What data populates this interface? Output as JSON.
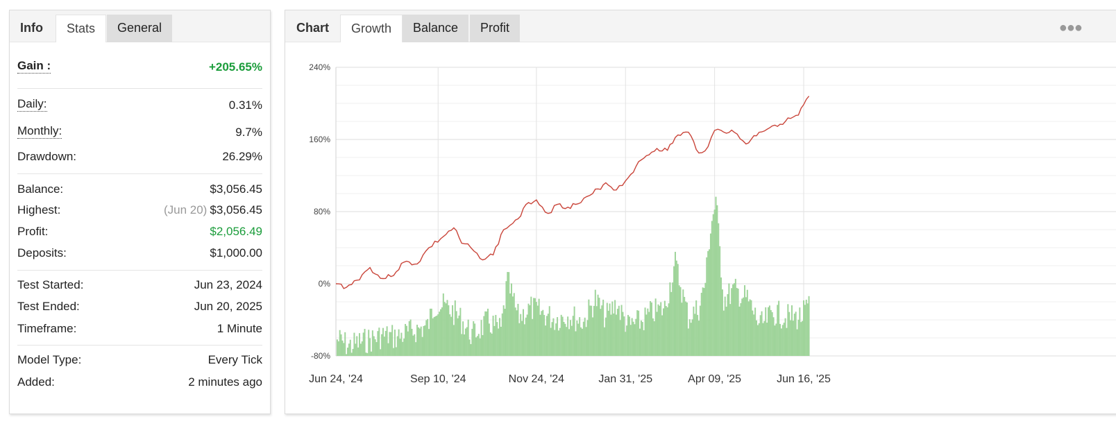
{
  "left_tabs": {
    "title": "Info",
    "active": "Stats",
    "inactive": "General"
  },
  "stats": {
    "gain": {
      "label": "Gain :",
      "value": "+205.65%"
    },
    "daily": {
      "label": "Daily:",
      "value": "0.31%"
    },
    "monthly": {
      "label": "Monthly:",
      "value": "9.7%"
    },
    "drawdown": {
      "label": "Drawdown:",
      "value": "26.29%"
    },
    "balance": {
      "label": "Balance:",
      "value": "$3,056.45"
    },
    "highest": {
      "label": "Highest:",
      "date": "(Jun 20)",
      "value": "$3,056.45"
    },
    "profit": {
      "label": "Profit:",
      "value": "$2,056.49"
    },
    "deposits": {
      "label": "Deposits:",
      "value": "$1,000.00"
    },
    "test_started": {
      "label": "Test Started:",
      "value": "Jun 23, 2024"
    },
    "test_ended": {
      "label": "Test Ended:",
      "value": "Jun 20, 2025"
    },
    "timeframe": {
      "label": "Timeframe:",
      "value": "1 Minute"
    },
    "model_type": {
      "label": "Model Type:",
      "value": "Every Tick"
    },
    "added": {
      "label": "Added:",
      "value": "2 minutes ago"
    }
  },
  "right_tabs": {
    "title": "Chart",
    "active": "Growth",
    "inactive": [
      "Balance",
      "Profit"
    ],
    "more_icon": "more-dots-icon"
  },
  "colors": {
    "positive": "#1a9c3a",
    "growth_line": "#c9453a",
    "bars": "#9fd49a"
  },
  "chart_data": {
    "type": "line",
    "ylim": [
      -80,
      240
    ],
    "y_ticks": [
      "240%",
      "160%",
      "80%",
      "0%",
      "-80%"
    ],
    "y_tick_values": [
      240,
      160,
      80,
      0,
      -80
    ],
    "x_tick_labels": [
      "Jun 24, '24",
      "Sep 10, '24",
      "Nov 24, '24",
      "Jan 31, '25",
      "Apr 09, '25",
      "Jun 16, '25"
    ],
    "x_tick_dates": [
      "2024-06-24",
      "2024-09-10",
      "2024-11-24",
      "2025-01-31",
      "2025-04-09",
      "2025-06-16"
    ],
    "x_range": [
      "2024-06-24",
      "2025-06-20"
    ],
    "grid": true,
    "series": [
      {
        "type": "line",
        "x": [
          "2024-06-24",
          "2024-07-02",
          "2024-07-10",
          "2024-07-20",
          "2024-07-28",
          "2024-08-05",
          "2024-08-15",
          "2024-08-25",
          "2024-09-03",
          "2024-09-12",
          "2024-09-22",
          "2024-09-28",
          "2024-10-05",
          "2024-10-12",
          "2024-10-22",
          "2024-10-30",
          "2024-11-04",
          "2024-11-10",
          "2024-11-18",
          "2024-11-24",
          "2024-12-03",
          "2024-12-10",
          "2024-12-18",
          "2024-12-28",
          "2025-01-06",
          "2025-01-16",
          "2025-01-24",
          "2025-01-31",
          "2025-02-08",
          "2025-02-16",
          "2025-02-24",
          "2025-03-04",
          "2025-03-12",
          "2025-03-20",
          "2025-03-28",
          "2025-04-04",
          "2025-04-09",
          "2025-04-14",
          "2025-04-24",
          "2025-05-03",
          "2025-05-13",
          "2025-05-23",
          "2025-06-02",
          "2025-06-12",
          "2025-06-20"
        ],
        "y": [
          0,
          -4,
          4,
          18,
          6,
          8,
          24,
          22,
          40,
          50,
          62,
          45,
          40,
          28,
          32,
          60,
          65,
          72,
          90,
          93,
          78,
          88,
          85,
          90,
          100,
          112,
          104,
          114,
          130,
          142,
          150,
          148,
          165,
          168,
          145,
          152,
          170,
          170,
          168,
          155,
          168,
          175,
          180,
          187,
          208
        ]
      },
      {
        "type": "bar",
        "note_units": "percent",
        "x": [
          "2024-06-26",
          "2024-07-04",
          "2024-07-12",
          "2024-07-20",
          "2024-07-30",
          "2024-08-10",
          "2024-08-22",
          "2024-09-02",
          "2024-09-08",
          "2024-09-18",
          "2024-09-26",
          "2024-10-06",
          "2024-10-18",
          "2024-10-28",
          "2024-11-02",
          "2024-11-10",
          "2024-11-20",
          "2024-11-28",
          "2024-12-08",
          "2024-12-18",
          "2024-12-30",
          "2025-01-08",
          "2025-01-16",
          "2025-01-24",
          "2025-02-02",
          "2025-02-12",
          "2025-02-20",
          "2025-03-02",
          "2025-03-10",
          "2025-03-20",
          "2025-03-28",
          "2025-04-02",
          "2025-04-06",
          "2025-04-10",
          "2025-04-16",
          "2025-04-24",
          "2025-05-04",
          "2025-05-14",
          "2025-05-24",
          "2025-06-04",
          "2025-06-14",
          "2025-06-19"
        ],
        "y": [
          -55,
          -62,
          -58,
          -55,
          -50,
          -52,
          -45,
          -40,
          -15,
          -20,
          -30,
          -50,
          -35,
          -45,
          10,
          -30,
          -20,
          -25,
          -32,
          -28,
          -35,
          -10,
          -30,
          -15,
          -40,
          -35,
          -25,
          -20,
          30,
          -30,
          -20,
          10,
          70,
          100,
          -10,
          0,
          -10,
          -40,
          -25,
          -30,
          -30,
          -20
        ]
      }
    ]
  }
}
